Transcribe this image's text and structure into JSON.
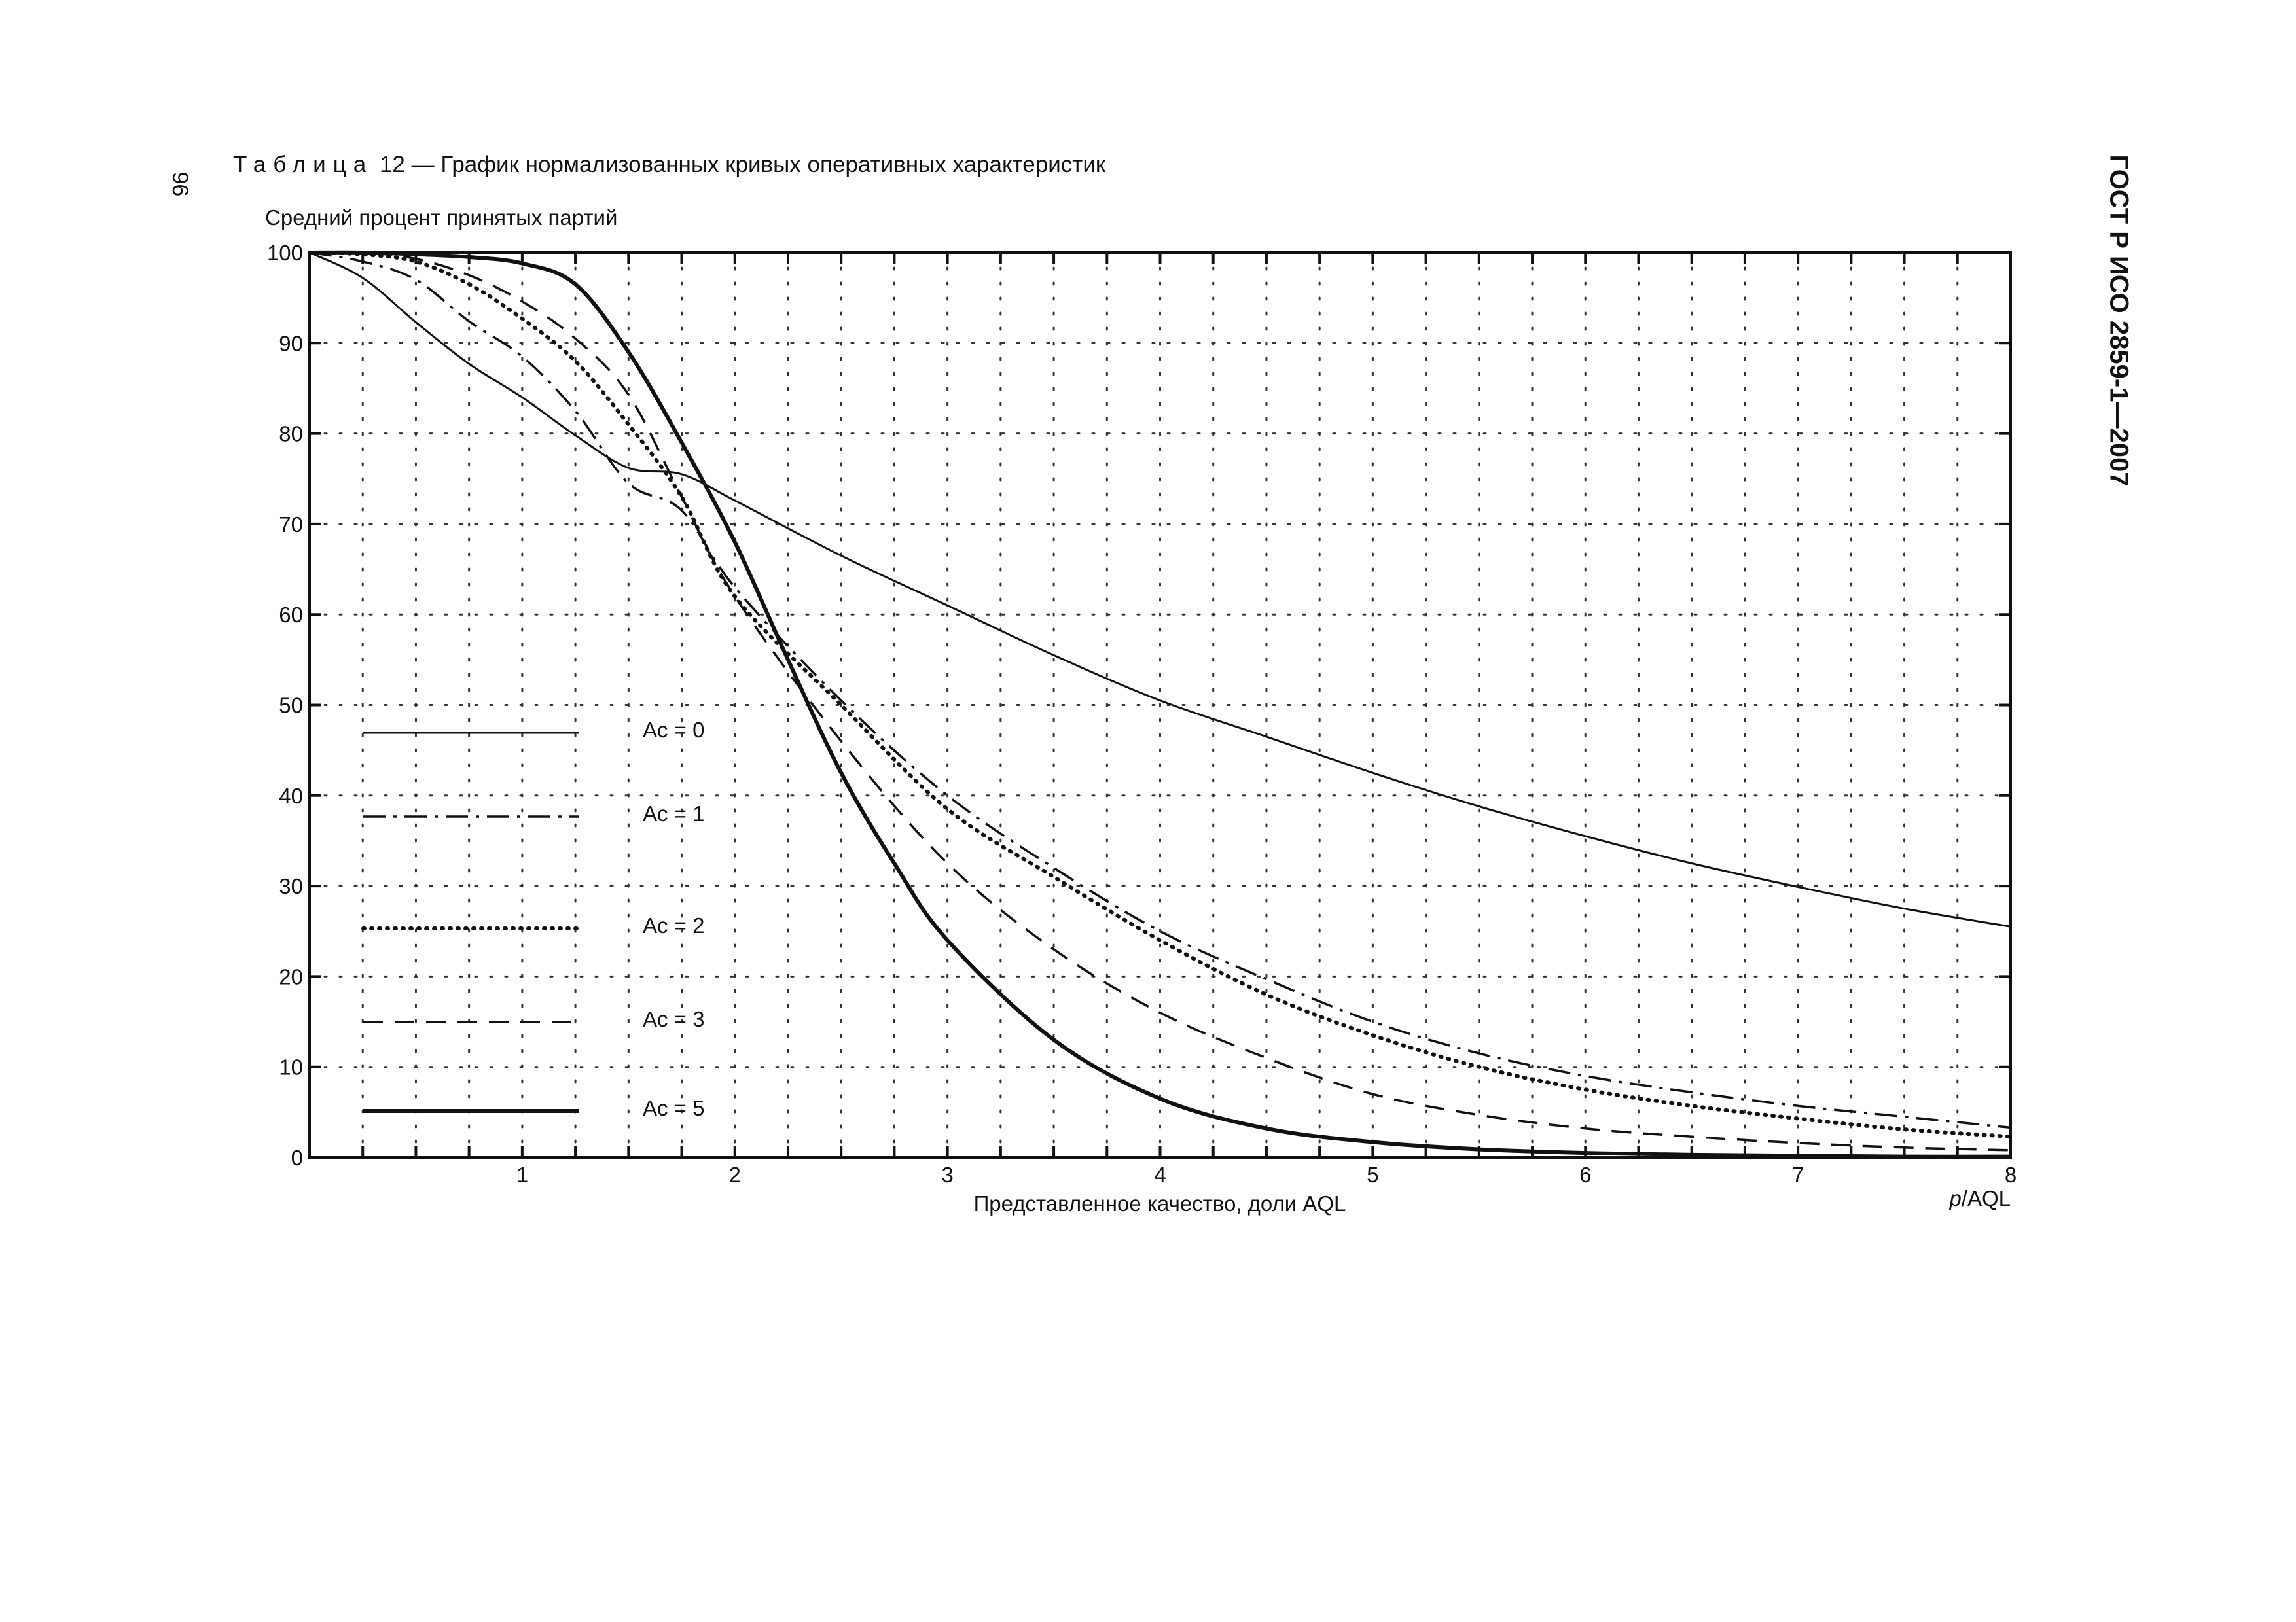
{
  "page": {
    "number": "96",
    "caption_prefix": "Таблица",
    "caption_rest": "12 — График нормализованных кривых оперативных характеристик",
    "document_code": "ГОСТ Р ИСО 2859-1—2007"
  },
  "chart_data": {
    "type": "line",
    "title": "",
    "ylabel": "Средний процент принятых партий",
    "xlabel": "Представленное качество, доли AQL",
    "x_unit_label": {
      "italic": "p",
      "rest": "/AQL"
    },
    "xlim": [
      0,
      8
    ],
    "ylim": [
      0,
      100
    ],
    "x_ticks": [
      1,
      2,
      3,
      4,
      5,
      6,
      7,
      8
    ],
    "x_tick_labels": [
      "1",
      "2",
      "3",
      "4",
      "5",
      "6",
      "7",
      "8"
    ],
    "y_ticks": [
      0,
      10,
      20,
      30,
      40,
      50,
      60,
      70,
      80,
      90,
      100
    ],
    "y_tick_labels": [
      "0",
      "10",
      "20",
      "30",
      "40",
      "50",
      "60",
      "70",
      "80",
      "90",
      "100"
    ],
    "x_grid_step": 0.25,
    "y_grid_step": 10,
    "grid": "dotted",
    "legend_position": "left",
    "line_color": "#111111",
    "series": [
      {
        "name": "Ac = 0",
        "style": "solid",
        "x": [
          0,
          0.25,
          0.5,
          0.75,
          1.0,
          1.25,
          1.5,
          1.75,
          2.0,
          2.5,
          3.0,
          3.5,
          4.0,
          4.5,
          5.0,
          5.5,
          6.0,
          6.5,
          7.0,
          7.5,
          8.0
        ],
        "y": [
          100,
          97.2,
          92.3,
          87.7,
          84.0,
          79.8,
          76.2,
          75.5,
          72.6,
          66.5,
          61.0,
          55.5,
          50.5,
          46.5,
          42.5,
          38.8,
          35.5,
          32.5,
          29.9,
          27.5,
          25.5
        ]
      },
      {
        "name": "Ac = 1",
        "style": "dashdot",
        "x": [
          0,
          0.25,
          0.5,
          0.75,
          1.0,
          1.25,
          1.5,
          1.75,
          2.0,
          2.5,
          3.0,
          3.5,
          4.0,
          4.5,
          5.0,
          5.5,
          6.0,
          6.5,
          7.0,
          7.5,
          8.0
        ],
        "y": [
          100,
          99.0,
          97.0,
          92.4,
          88.5,
          82.5,
          74.5,
          71.5,
          63.0,
          50.5,
          40.0,
          32.0,
          25.0,
          19.7,
          15.0,
          11.5,
          9.0,
          7.2,
          5.7,
          4.5,
          3.3
        ]
      },
      {
        "name": "Ac = 2",
        "style": "dotted",
        "x": [
          0,
          0.25,
          0.5,
          0.75,
          1.0,
          1.25,
          1.5,
          1.75,
          2.0,
          2.5,
          3.0,
          3.5,
          4.0,
          4.5,
          5.0,
          5.5,
          6.0,
          6.5,
          7.0,
          7.5,
          8.0
        ],
        "y": [
          100,
          99.8,
          99.0,
          96.5,
          92.7,
          88.0,
          81.0,
          73.0,
          62.0,
          50.0,
          38.5,
          31.0,
          24.0,
          18.0,
          13.5,
          10.0,
          7.5,
          5.7,
          4.3,
          3.1,
          2.3
        ]
      },
      {
        "name": "Ac = 3",
        "style": "dashed",
        "x": [
          0,
          0.25,
          0.5,
          0.75,
          1.0,
          1.25,
          1.5,
          1.75,
          2.0,
          2.5,
          3.0,
          3.5,
          4.0,
          4.5,
          5.0,
          5.5,
          6.0,
          6.5,
          7.0,
          7.5,
          8.0
        ],
        "y": [
          100,
          100,
          99.3,
          97.5,
          94.6,
          90.5,
          84.3,
          73.0,
          62.0,
          46.0,
          32.5,
          23.0,
          16.0,
          11.0,
          7.0,
          4.7,
          3.2,
          2.3,
          1.6,
          1.1,
          0.8
        ]
      },
      {
        "name": "Ac = 5",
        "style": "solid-bold",
        "x": [
          0,
          0.25,
          0.5,
          0.75,
          1.0,
          1.25,
          1.5,
          1.75,
          2.0,
          2.25,
          2.5,
          2.75,
          3.0,
          3.5,
          4.0,
          4.5,
          5.0,
          5.5,
          6.0,
          6.5,
          7.0,
          7.5,
          8.0
        ],
        "y": [
          100,
          100,
          99.8,
          99.5,
          98.8,
          96.5,
          89.0,
          79.0,
          68.0,
          55.0,
          42.5,
          32.5,
          24.0,
          13.0,
          6.5,
          3.2,
          1.7,
          0.9,
          0.5,
          0.3,
          0.2,
          0.1,
          0.1
        ]
      }
    ]
  }
}
